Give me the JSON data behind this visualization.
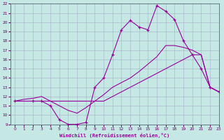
{
  "xlabel": "Windchill (Refroidissement éolien,°C)",
  "xlim": [
    -0.5,
    23
  ],
  "ylim": [
    9,
    22
  ],
  "xticks": [
    0,
    1,
    2,
    3,
    4,
    5,
    6,
    7,
    8,
    9,
    10,
    11,
    12,
    13,
    14,
    15,
    16,
    17,
    18,
    19,
    20,
    21,
    22,
    23
  ],
  "yticks": [
    9,
    10,
    11,
    12,
    13,
    14,
    15,
    16,
    17,
    18,
    19,
    20,
    21,
    22
  ],
  "bg_color": "#c5e8e5",
  "line_color": "#990099",
  "grid_color": "#aab8cc",
  "line1_x": [
    0,
    1,
    2,
    3,
    4,
    5,
    6,
    7,
    8,
    9,
    10,
    11,
    12,
    13,
    14,
    15,
    16,
    17,
    18,
    19,
    20,
    21,
    22,
    23
  ],
  "line1_y": [
    11.5,
    11.5,
    11.5,
    11.5,
    11.5,
    11.5,
    11.5,
    11.5,
    11.5,
    11.5,
    11.5,
    12.0,
    12.5,
    13.0,
    13.5,
    14.0,
    14.5,
    15.0,
    15.5,
    16.0,
    16.5,
    16.5,
    13.0,
    12.5
  ],
  "line2_x": [
    0,
    1,
    2,
    3,
    4,
    5,
    6,
    7,
    8,
    9,
    10,
    11,
    12,
    13,
    14,
    15,
    16,
    17,
    18,
    19,
    20,
    21,
    22,
    23
  ],
  "line2_y": [
    11.5,
    11.7,
    11.8,
    12.0,
    11.5,
    11.0,
    10.5,
    10.2,
    10.8,
    11.5,
    12.2,
    13.0,
    13.5,
    14.0,
    14.7,
    15.5,
    16.3,
    17.5,
    17.5,
    17.3,
    17.0,
    16.5,
    13.0,
    12.5
  ],
  "line3_x": [
    0,
    2,
    3,
    4,
    5,
    6,
    7,
    8,
    9,
    10,
    11,
    12,
    13,
    14,
    15,
    16,
    17,
    18,
    19,
    20,
    21,
    22,
    23
  ],
  "line3_y": [
    11.5,
    11.5,
    11.5,
    11.0,
    9.5,
    9.0,
    9.0,
    9.2,
    13.0,
    14.0,
    16.5,
    19.2,
    20.2,
    19.5,
    19.2,
    21.8,
    21.2,
    20.3,
    18.0,
    16.5,
    15.0,
    13.0,
    12.5
  ]
}
